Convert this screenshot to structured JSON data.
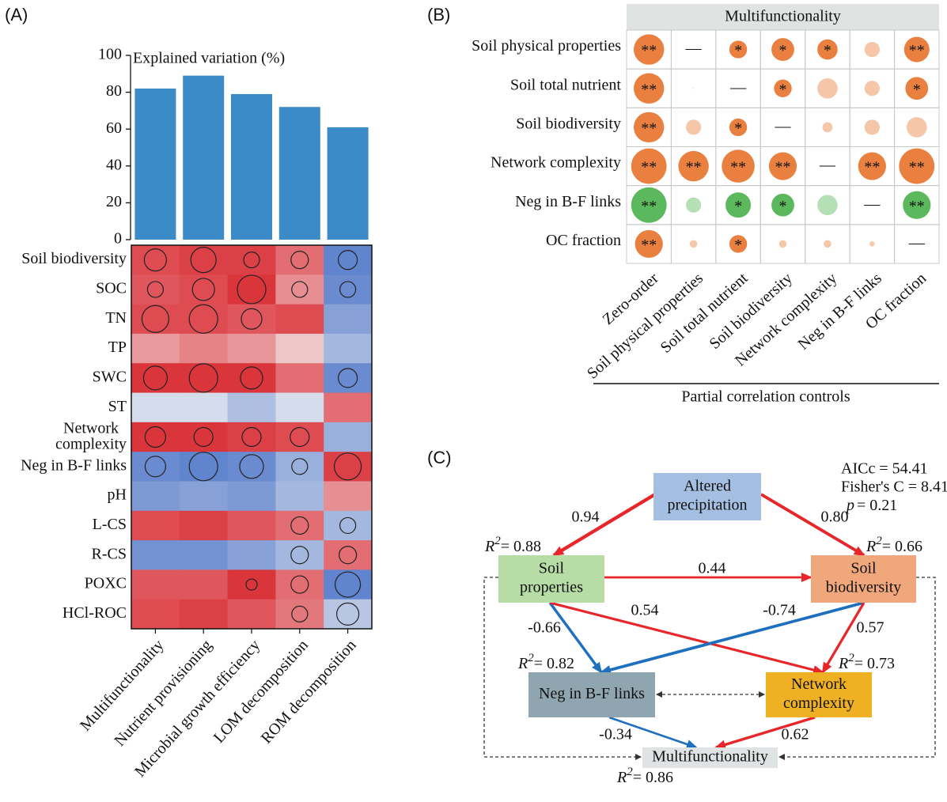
{
  "panel_labels": [
    "(A)",
    "(B)",
    "(C)"
  ],
  "chart_data": [
    {
      "type": "bar",
      "title": "Explained variation (%)",
      "values": [
        82,
        89,
        79,
        72,
        61
      ],
      "color": "#3b8bc9",
      "ylim": [
        0,
        100
      ],
      "yticks": [
        0,
        20,
        40,
        60,
        80,
        100
      ]
    },
    {
      "type": "heatmap",
      "rows": [
        "Soil biodiversity",
        "SOC",
        "TN",
        "TP",
        "SWC",
        "ST",
        "Network complexity",
        "Neg in B-F links",
        "pH",
        "L-CS",
        "R-CS",
        "POXC",
        "HCl-ROC"
      ],
      "columns": [
        "Multifunctionality",
        "Nutrient provisioning",
        "Microbial growth efficiency",
        "LOM decomposition",
        "ROM decomposition"
      ],
      "values": [
        [
          0.75,
          0.8,
          0.8,
          0.6,
          -0.75
        ],
        [
          0.7,
          0.75,
          0.85,
          0.45,
          -0.7
        ],
        [
          0.75,
          0.75,
          0.7,
          0.75,
          -0.55
        ],
        [
          0.4,
          0.5,
          0.42,
          0.2,
          -0.4
        ],
        [
          0.85,
          0.85,
          0.85,
          0.6,
          -0.7
        ],
        [
          -0.15,
          -0.15,
          -0.35,
          -0.15,
          0.6
        ],
        [
          0.85,
          0.85,
          0.8,
          0.75,
          -0.45
        ],
        [
          -0.7,
          -0.75,
          -0.7,
          -0.45,
          0.8
        ],
        [
          -0.6,
          -0.55,
          -0.6,
          -0.4,
          0.45
        ],
        [
          0.75,
          0.8,
          0.7,
          0.6,
          -0.4
        ],
        [
          -0.65,
          -0.65,
          -0.55,
          -0.4,
          0.6
        ],
        [
          0.7,
          0.7,
          0.85,
          0.6,
          -0.75
        ],
        [
          0.75,
          0.8,
          0.7,
          0.55,
          -0.3
        ]
      ],
      "sizes": [
        [
          14,
          16,
          10,
          11,
          12
        ],
        [
          10,
          14,
          18,
          10,
          10
        ],
        [
          17,
          18,
          13,
          null,
          null
        ],
        [
          null,
          null,
          null,
          null,
          null
        ],
        [
          15,
          18,
          14,
          null,
          12
        ],
        [
          null,
          null,
          null,
          null,
          null
        ],
        [
          13,
          12,
          12,
          12,
          null
        ],
        [
          13,
          18,
          15,
          10,
          17
        ],
        [
          null,
          null,
          null,
          null,
          null
        ],
        [
          null,
          null,
          null,
          11,
          10
        ],
        [
          null,
          null,
          null,
          11,
          11
        ],
        [
          null,
          null,
          7,
          11,
          16
        ],
        [
          null,
          null,
          null,
          10,
          14
        ]
      ],
      "zlim": [
        -1,
        1
      ],
      "color_low": "#2f5fc0",
      "color_mid": "#f2f2f2",
      "color_high": "#d7141c",
      "circle_color": "#222222"
    },
    {
      "type": "bubble-matrix",
      "title": "Multifunctionality",
      "rows": [
        "Soil physical properties",
        "Soil total nutrient",
        "Soil biodiversity",
        "Network complexity",
        "Neg in B-F links",
        "OC fraction"
      ],
      "columns": [
        "Zero-order",
        "Soil physical properties",
        "Soil total nutrient",
        "Soil biodiversity",
        "Network complexity",
        "Neg in B-F links",
        "OC fraction"
      ],
      "values": [
        [
          0.6,
          null,
          0.35,
          0.45,
          0.4,
          0.3,
          0.5
        ],
        [
          0.6,
          0.02,
          null,
          0.35,
          0.4,
          0.3,
          0.45
        ],
        [
          0.6,
          0.3,
          0.35,
          null,
          0.2,
          0.3,
          0.4
        ],
        [
          0.7,
          0.6,
          0.65,
          0.55,
          null,
          0.55,
          0.7
        ],
        [
          -0.7,
          -0.3,
          -0.5,
          -0.45,
          -0.4,
          null,
          -0.55
        ],
        [
          0.55,
          0.15,
          0.35,
          0.15,
          0.15,
          0.1,
          null
        ]
      ],
      "labels": [
        [
          "**",
          "—",
          "*",
          "*",
          "*",
          null,
          "**"
        ],
        [
          "**",
          null,
          "—",
          "*",
          null,
          null,
          "*"
        ],
        [
          "**",
          null,
          "*",
          "—",
          null,
          null,
          null
        ],
        [
          "**",
          "**",
          "**",
          "**",
          "—",
          "**",
          "**"
        ],
        [
          "**",
          null,
          "*",
          "*",
          null,
          "—",
          "**"
        ],
        [
          "**",
          null,
          "*",
          null,
          null,
          null,
          "—"
        ]
      ],
      "xlabel": "Partial correlation controls",
      "positive_color": "#e9803f",
      "negative_color": "#5cb85c"
    }
  ],
  "diagram": {
    "fit": [
      "AICc = 54.41",
      "Fisher's C = 8.41"
    ],
    "p_symbol": "p",
    "p_value": "= 0.21",
    "r2_symbol": "R",
    "r2_sup": "2",
    "nodes": [
      {
        "label": [
          "Altered",
          "precipitation"
        ],
        "color": "#a4bfe2",
        "r2": null
      },
      {
        "label": [
          "Soil",
          "properties"
        ],
        "color": "#b7dca5",
        "r2": "= 0.88"
      },
      {
        "label": [
          "Soil",
          "biodiversity"
        ],
        "color": "#f0a77c",
        "r2": "= 0.66"
      },
      {
        "label": [
          "Neg in B-F links"
        ],
        "color": "#8fa6b0",
        "r2": "= 0.82"
      },
      {
        "label": [
          "Network",
          "complexity"
        ],
        "color": "#f0b023",
        "r2": "= 0.73"
      },
      {
        "label": [
          "Multifunctionality"
        ],
        "color": "#dfe3e4",
        "r2": "= 0.86"
      }
    ],
    "edges": [
      {
        "from": 0,
        "to": 1,
        "coef": "0.94",
        "color": "#e8262a"
      },
      {
        "from": 0,
        "to": 2,
        "coef": "0.80",
        "color": "#e8262a"
      },
      {
        "from": 1,
        "to": 2,
        "coef": "0.44",
        "color": "#e8262a"
      },
      {
        "from": 1,
        "to": 3,
        "coef": "-0.66",
        "color": "#1f6fbf"
      },
      {
        "from": 1,
        "to": 4,
        "coef": "0.54",
        "color": "#e8262a"
      },
      {
        "from": 2,
        "to": 3,
        "coef": "-0.74",
        "color": "#1f6fbf"
      },
      {
        "from": 2,
        "to": 4,
        "coef": "0.57",
        "color": "#e8262a"
      },
      {
        "from": 3,
        "to": 5,
        "coef": "-0.34",
        "color": "#1f6fbf"
      },
      {
        "from": 4,
        "to": 5,
        "coef": "0.62",
        "color": "#e8262a"
      }
    ]
  }
}
